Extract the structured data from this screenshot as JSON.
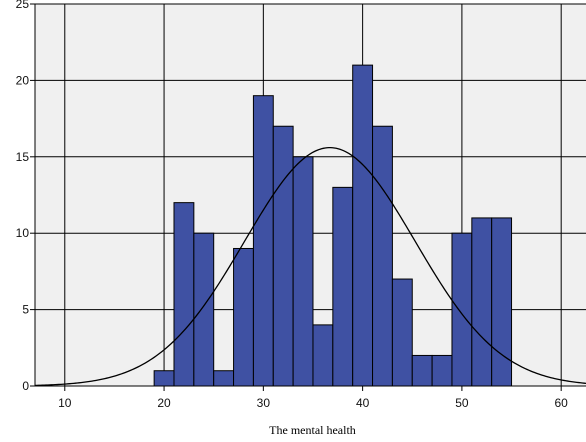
{
  "chart_data": {
    "type": "bar",
    "xlabel": "The mental health",
    "ylabel": "",
    "xlim": [
      7,
      62.5
    ],
    "ylim": [
      0,
      25
    ],
    "bin_width": 2,
    "x_ticks": [
      10,
      20,
      30,
      40,
      50,
      60
    ],
    "y_ticks": [
      0,
      5,
      10,
      15,
      20,
      25
    ],
    "bins": [
      {
        "start": 19,
        "end": 21,
        "count": 1
      },
      {
        "start": 21,
        "end": 23,
        "count": 12
      },
      {
        "start": 23,
        "end": 25,
        "count": 10
      },
      {
        "start": 25,
        "end": 27,
        "count": 1
      },
      {
        "start": 27,
        "end": 29,
        "count": 9
      },
      {
        "start": 29,
        "end": 31,
        "count": 19
      },
      {
        "start": 31,
        "end": 33,
        "count": 17
      },
      {
        "start": 33,
        "end": 35,
        "count": 15
      },
      {
        "start": 35,
        "end": 37,
        "count": 4
      },
      {
        "start": 37,
        "end": 39,
        "count": 13
      },
      {
        "start": 39,
        "end": 41,
        "count": 21
      },
      {
        "start": 41,
        "end": 43,
        "count": 17
      },
      {
        "start": 43,
        "end": 45,
        "count": 7
      },
      {
        "start": 45,
        "end": 47,
        "count": 2
      },
      {
        "start": 47,
        "end": 49,
        "count": 2
      },
      {
        "start": 49,
        "end": 51,
        "count": 10
      },
      {
        "start": 51,
        "end": 53,
        "count": 11
      },
      {
        "start": 53,
        "end": 55,
        "count": 11
      }
    ],
    "normal_curve": {
      "mean": 36.7,
      "peak": 15.6,
      "sd": 8.6
    },
    "grid": true,
    "colors": {
      "bar_fill": "#3f51a3",
      "bar_stroke": "#000000",
      "plot_background": "#f0f0f0",
      "grid": "#000000",
      "curve": "#000000"
    }
  }
}
